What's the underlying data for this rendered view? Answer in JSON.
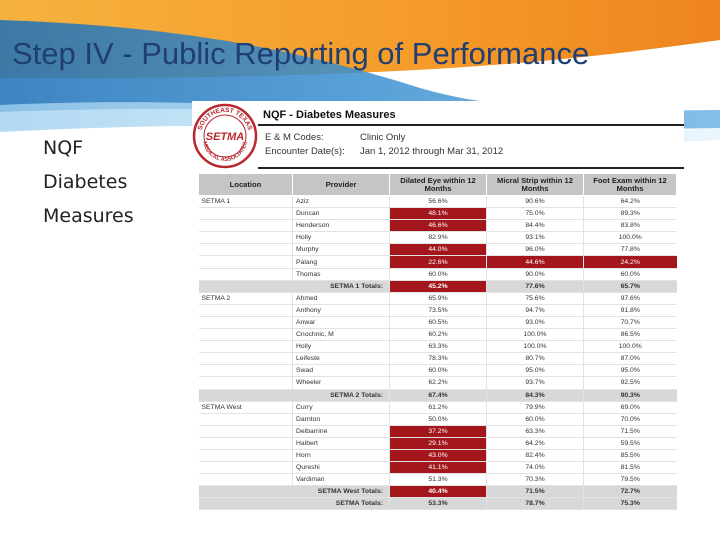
{
  "slide": {
    "title": "Step IV - Public Reporting of Performance",
    "side_lines": [
      "NQF",
      "Diabetes",
      "Measures"
    ]
  },
  "report": {
    "title": "NQF - Diabetes Measures",
    "logo_text_top": "SOUTHEAST TEXAS",
    "logo_text_mid": "SETMA",
    "logo_text_bottom": "MEDICAL ASSOCIATES",
    "meta": {
      "codes_label": "E & M Codes:",
      "codes_value": "Clinic Only",
      "date_label": "Encounter Date(s):",
      "date_value": "Jan 1, 2012 through Mar 31, 2012"
    },
    "columns": [
      "Location",
      "Provider",
      "Dilated Eye within 12 Months",
      "Micral Strip within 12 Months",
      "Foot Exam within 12 Months"
    ],
    "groups": [
      {
        "location": "SETMA 1",
        "rows": [
          {
            "provider": "Aziz",
            "eye": "56.6%",
            "micral": "90.6%",
            "foot": "64.2%",
            "red": []
          },
          {
            "provider": "Duncan",
            "eye": "48.1%",
            "micral": "75.0%",
            "foot": "89.3%",
            "red": [
              0
            ]
          },
          {
            "provider": "Henderson",
            "eye": "46.6%",
            "micral": "84.4%",
            "foot": "83.8%",
            "red": [
              0
            ]
          },
          {
            "provider": "Holly",
            "eye": "82.9%",
            "micral": "93.1%",
            "foot": "100.0%",
            "red": []
          },
          {
            "provider": "Murphy",
            "eye": "44.0%",
            "micral": "96.0%",
            "foot": "77.8%",
            "red": [
              0
            ]
          },
          {
            "provider": "Palang",
            "eye": "22.6%",
            "micral": "44.6%",
            "foot": "24.2%",
            "red": [
              0,
              1,
              2
            ]
          },
          {
            "provider": "Thomas",
            "eye": "60.0%",
            "micral": "90.0%",
            "foot": "60.0%",
            "red": []
          }
        ],
        "total_label": "SETMA 1 Totals:",
        "total": {
          "eye": "45.2%",
          "micral": "77.6%",
          "foot": "65.7%",
          "red": [
            0
          ]
        }
      },
      {
        "location": "SETMA 2",
        "rows": [
          {
            "provider": "Ahmed",
            "eye": "65.9%",
            "micral": "75.6%",
            "foot": "97.6%",
            "red": []
          },
          {
            "provider": "Anthony",
            "eye": "73.5%",
            "micral": "94.7%",
            "foot": "91.8%",
            "red": []
          },
          {
            "provider": "Anwar",
            "eye": "60.5%",
            "micral": "93.0%",
            "foot": "70.7%",
            "red": []
          },
          {
            "provider": "Cnochnic, M",
            "eye": "60.2%",
            "micral": "100.0%",
            "foot": "86.5%",
            "red": []
          },
          {
            "provider": "Holly",
            "eye": "63.3%",
            "micral": "100.0%",
            "foot": "100.0%",
            "red": []
          },
          {
            "provider": "Leifeste",
            "eye": "78.3%",
            "micral": "80.7%",
            "foot": "87.0%",
            "red": []
          },
          {
            "provider": "Swad",
            "eye": "60.0%",
            "micral": "95.0%",
            "foot": "95.0%",
            "red": []
          },
          {
            "provider": "Wheeler",
            "eye": "62.2%",
            "micral": "93.7%",
            "foot": "92.5%",
            "red": []
          }
        ],
        "total_label": "SETMA 2 Totals:",
        "total": {
          "eye": "67.4%",
          "micral": "84.3%",
          "foot": "90.3%",
          "red": []
        }
      },
      {
        "location": "SETMA West",
        "rows": [
          {
            "provider": "Curry",
            "eye": "61.2%",
            "micral": "79.9%",
            "foot": "69.0%",
            "red": []
          },
          {
            "provider": "Darnton",
            "eye": "50.0%",
            "micral": "60.0%",
            "foot": "70.0%",
            "red": []
          },
          {
            "provider": "Delbarrine",
            "eye": "37.2%",
            "micral": "63.3%",
            "foot": "71.5%",
            "red": [
              0
            ]
          },
          {
            "provider": "Halbert",
            "eye": "29.1%",
            "micral": "64.2%",
            "foot": "59.5%",
            "red": [
              0
            ]
          },
          {
            "provider": "Horn",
            "eye": "43.0%",
            "micral": "82.4%",
            "foot": "85.5%",
            "red": [
              0
            ]
          },
          {
            "provider": "Qureshi",
            "eye": "41.1%",
            "micral": "74.0%",
            "foot": "81.5%",
            "red": [
              0
            ]
          },
          {
            "provider": "Vardiman",
            "eye": "51.3%",
            "micral": "70.3%",
            "foot": "79.5%",
            "red": []
          }
        ],
        "total_label": "SETMA West Totals:",
        "total": {
          "eye": "40.4%",
          "micral": "71.5%",
          "foot": "72.7%",
          "red": [
            0
          ]
        }
      }
    ],
    "grand_total_label": "SETMA Totals:",
    "grand_total": {
      "eye": "53.3%",
      "micral": "78.7%",
      "foot": "75.3%",
      "red": []
    }
  },
  "colors": {
    "title": "#1f3f73",
    "banner_blue": "#2a7fc0",
    "banner_orange": "#f39a2a",
    "highlight_red": "#a3171c",
    "header_gray": "#c5c5c5",
    "logo_red": "#b8282e"
  }
}
